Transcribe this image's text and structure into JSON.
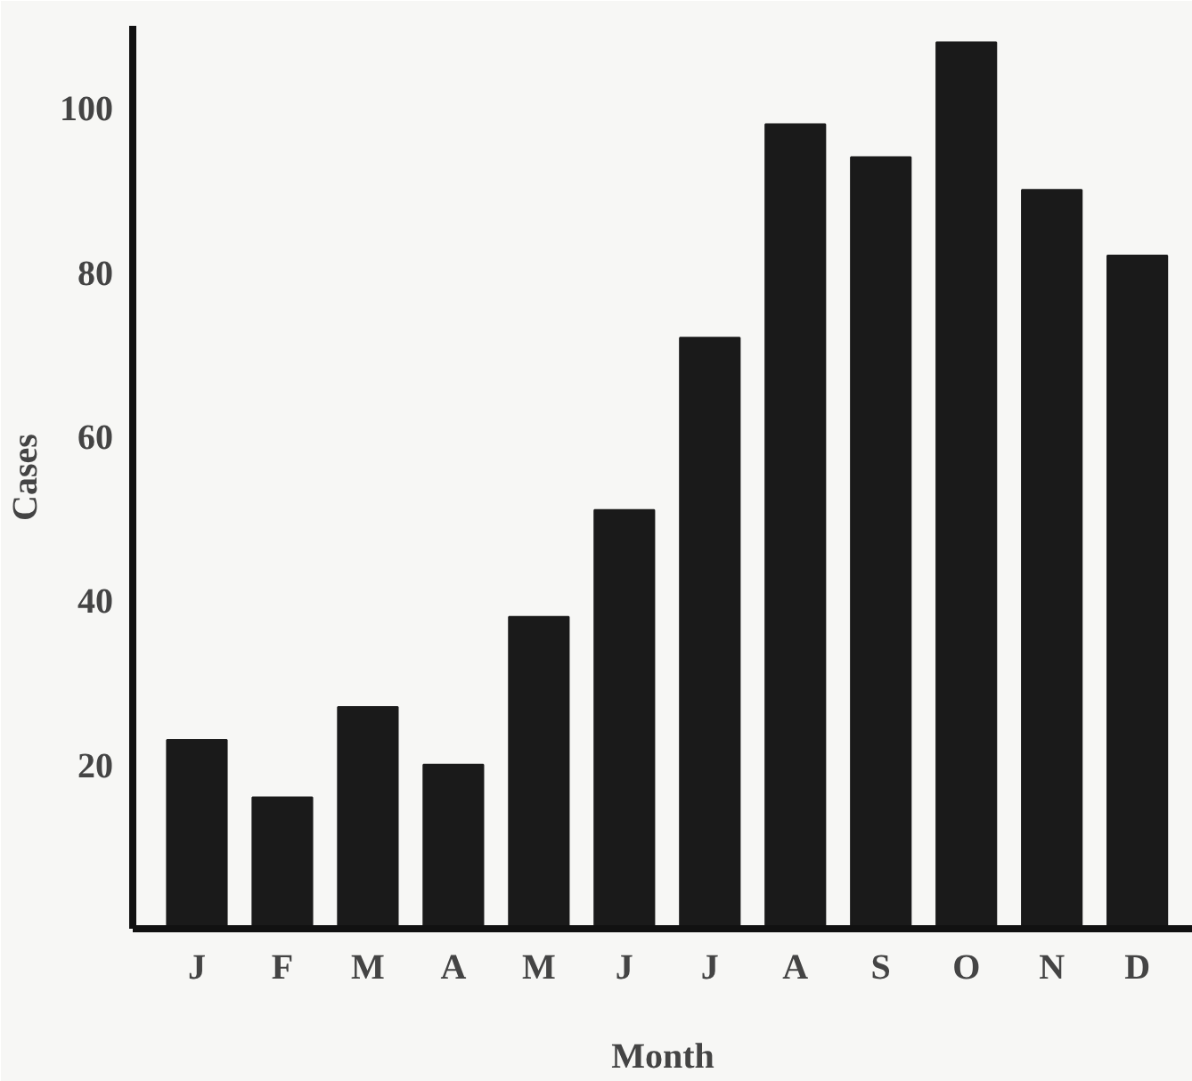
{
  "chart_data": {
    "type": "bar",
    "xlabel": "Month",
    "ylabel": "Cases",
    "categories": [
      "J",
      "F",
      "M",
      "A",
      "M",
      "J",
      "J",
      "A",
      "S",
      "O",
      "N",
      "D"
    ],
    "values": [
      23,
      16,
      27,
      20,
      38,
      51,
      72,
      98,
      94,
      108,
      90,
      82
    ],
    "color": "#1a1a1a",
    "ylim": [
      0,
      110
    ],
    "yticks": [
      20,
      40,
      60,
      80,
      100
    ],
    "grid": false
  }
}
